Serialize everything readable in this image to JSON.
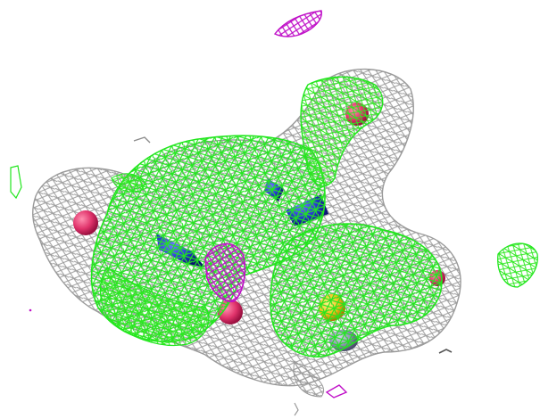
{
  "scene": {
    "type": "electron-density-map-render",
    "background": "#ffffff",
    "mesh_colors": {
      "density_2fofc": "#9a9a9a",
      "difference_positive": "#22e61e",
      "difference_negative": "#c010c8"
    },
    "atom_colors": {
      "oxygen": "#e0336b",
      "nitrogen": "#2233cc",
      "sulfur": "#f2c21a",
      "carbon_shadow": "#8a8fb0"
    }
  }
}
